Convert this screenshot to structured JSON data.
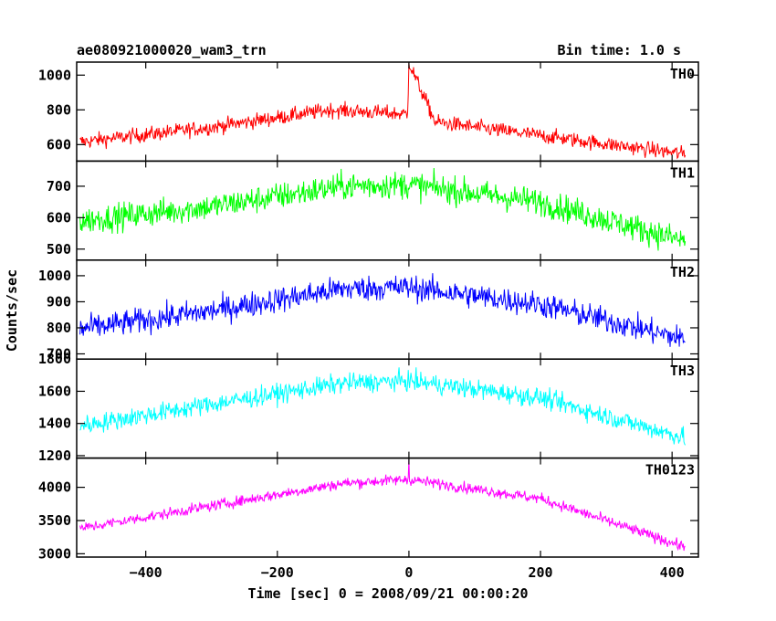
{
  "header": {
    "title": "ae080921000020_wam3_trn",
    "bin_time": "Bin time: 1.0 s"
  },
  "chart_data": {
    "type": "line",
    "xlabel": "Time [sec] 0 = 2008/09/21 00:00:20",
    "ylabel": "Counts/sec",
    "xlim": [
      -505,
      440
    ],
    "x_ticks": [
      -400,
      -200,
      0,
      200,
      400
    ],
    "x_tick_labels": [
      "−400",
      "−200",
      "0",
      "200",
      "400"
    ],
    "x_start": -500,
    "x_end": 420,
    "bin_sec": 1.0,
    "grid": false,
    "legend": "none",
    "panels": [
      {
        "name": "TH0",
        "color": "#ff0000",
        "ylim": [
          505,
          1075
        ],
        "y_ticks": [
          600,
          800,
          1000
        ],
        "profile": [
          [
            -500,
            615
          ],
          [
            -300,
            700
          ],
          [
            -120,
            800
          ],
          [
            -2,
            775
          ],
          [
            0,
            1070
          ],
          [
            40,
            730
          ],
          [
            420,
            545
          ]
        ],
        "noise": 40,
        "spike_x": 0,
        "spike_y": 1070
      },
      {
        "name": "TH1",
        "color": "#00ff00",
        "ylim": [
          465,
          780
        ],
        "y_ticks": [
          500,
          600,
          700
        ],
        "profile": [
          [
            -500,
            590
          ],
          [
            -300,
            635
          ],
          [
            -100,
            700
          ],
          [
            0,
            705
          ],
          [
            200,
            650
          ],
          [
            420,
            525
          ]
        ],
        "noise": 40,
        "spike_x": null,
        "spike_y": null
      },
      {
        "name": "TH2",
        "color": "#0000ff",
        "ylim": [
          680,
          1060
        ],
        "y_ticks": [
          700,
          800,
          900,
          1000
        ],
        "profile": [
          [
            -500,
            795
          ],
          [
            -300,
            865
          ],
          [
            -100,
            950
          ],
          [
            0,
            955
          ],
          [
            200,
            890
          ],
          [
            420,
            755
          ]
        ],
        "noise": 45,
        "spike_x": null,
        "spike_y": null
      },
      {
        "name": "TH3",
        "color": "#00ffff",
        "ylim": [
          1185,
          1800
        ],
        "y_ticks": [
          1200,
          1400,
          1600,
          1800
        ],
        "profile": [
          [
            -500,
            1385
          ],
          [
            -300,
            1520
          ],
          [
            -100,
            1650
          ],
          [
            0,
            1665
          ],
          [
            200,
            1560
          ],
          [
            420,
            1310
          ]
        ],
        "noise": 55,
        "spike_x": null,
        "spike_y": null
      },
      {
        "name": "TH0123",
        "color": "#ff00ff",
        "ylim": [
          2950,
          4440
        ],
        "y_ticks": [
          3000,
          3500,
          4000
        ],
        "profile": [
          [
            -500,
            3380
          ],
          [
            -300,
            3720
          ],
          [
            -100,
            4060
          ],
          [
            0,
            4120
          ],
          [
            200,
            3830
          ],
          [
            420,
            3100
          ]
        ],
        "noise": 75,
        "spike_x": 0,
        "spike_y": 4420
      }
    ]
  }
}
